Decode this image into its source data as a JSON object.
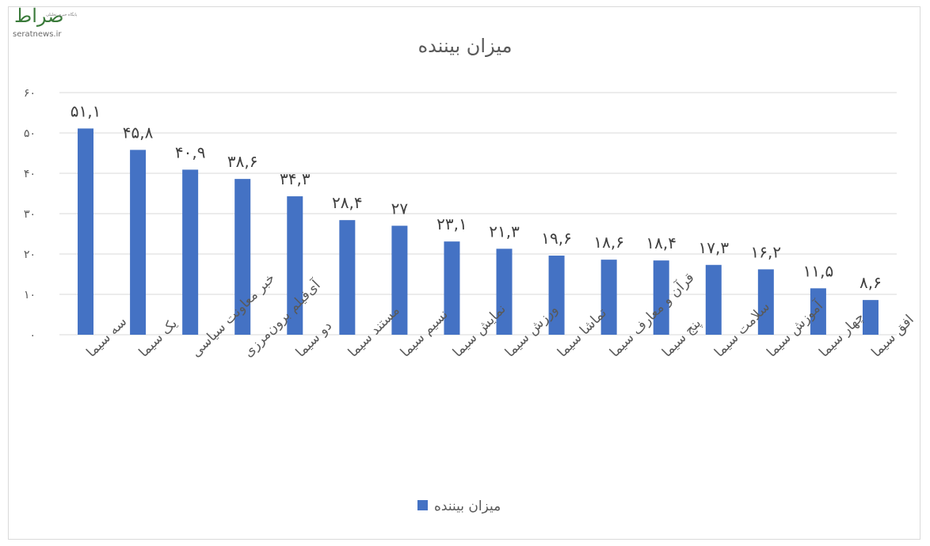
{
  "watermark": {
    "logo_mark": "صراط",
    "tagline": "پایگاه خبری تحلیلی",
    "url": "seratnews.ir"
  },
  "chart_data": {
    "type": "bar",
    "title": "میزان بیننده",
    "categories": [
      "سه سیما",
      "یک سیما",
      "خبر معاونت سیاسی",
      "آی‌فیلم برون‌مرزی",
      "دو سیما",
      "مستند سیما",
      "نسیم سیما",
      "نمایش سیما",
      "ورزش سیما",
      "تماشا سیما",
      "قرآن و معارف سیما",
      "پنج سیما",
      "سلامت سیما",
      "آموزش سیما",
      "چهار سیما",
      "افق سیما"
    ],
    "series": [
      {
        "name": "میزان بیننده",
        "values": [
          51.1,
          45.8,
          40.9,
          38.6,
          34.3,
          28.4,
          27,
          23.1,
          21.3,
          19.6,
          18.6,
          18.4,
          17.3,
          16.2,
          11.5,
          8.6
        ],
        "labels": [
          "۵۱,۱",
          "۴۵,۸",
          "۴۰,۹",
          "۳۸,۶",
          "۳۴,۳",
          "۲۸,۴",
          "۲۷",
          "۲۳,۱",
          "۲۱,۳",
          "۱۹,۶",
          "۱۸,۶",
          "۱۸,۴",
          "۱۷,۳",
          "۱۶,۲",
          "۱۱,۵",
          "۸,۶"
        ]
      }
    ],
    "ylim": [
      0,
      60
    ],
    "yticks": [
      0,
      10,
      20,
      30,
      40,
      50,
      60
    ],
    "ytick_labels": [
      "۰",
      "۱۰",
      "۲۰",
      "۳۰",
      "۴۰",
      "۵۰",
      "۶۰"
    ],
    "grid": true,
    "legend_position": "bottom",
    "colors": {
      "bar": "#4472c4",
      "grid": "#d9d9d9",
      "text": "#595959"
    }
  }
}
